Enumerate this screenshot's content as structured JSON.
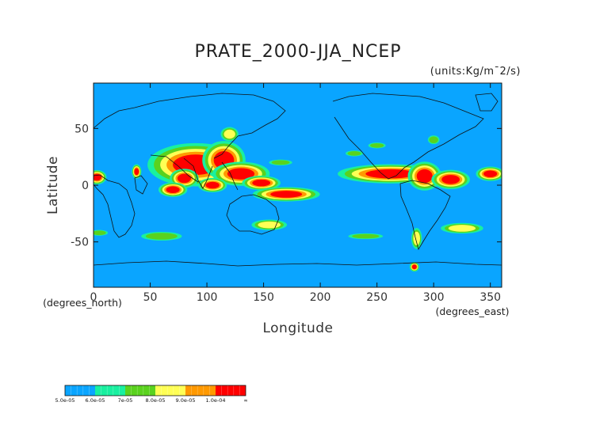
{
  "chart_data": {
    "type": "heatmap",
    "title": "PRATE_2000-JJA_NCEP",
    "units": "(units:Kg/m¯2/s)",
    "xlabel": "Longitude",
    "ylabel": "Latitude",
    "x_unit": "(degrees_east)",
    "y_unit": "(degrees_north)",
    "xlim": [
      0,
      360
    ],
    "ylim": [
      -90,
      90
    ],
    "x_ticks": [
      0,
      50,
      100,
      150,
      200,
      250,
      300,
      350
    ],
    "y_ticks": [
      -50,
      0,
      50
    ],
    "background_color": "#0aa5ff",
    "colorbar": {
      "labels": [
        "5.0e-05",
        "6.0e-05",
        "7e-05",
        "8.0e-05",
        "9.0e-05",
        "1.0e-04",
        "∞"
      ],
      "bins": [
        {
          "from": 5e-05,
          "to": 6e-05,
          "color": "#0aa5ff"
        },
        {
          "from": 6e-05,
          "to": 7e-05,
          "color": "#19f0a0"
        },
        {
          "from": 7e-05,
          "to": 8e-05,
          "color": "#5ad21e"
        },
        {
          "from": 8e-05,
          "to": 9e-05,
          "color": "#ffff55"
        },
        {
          "from": 9e-05,
          "to": 0.0001,
          "color": "#ff9900"
        },
        {
          "from": 0.0001,
          "to": null,
          "color": "#ff0000"
        }
      ]
    },
    "features": [
      {
        "lon": 90,
        "lat": 18,
        "rlon": 20,
        "rlat": 9,
        "level": 6
      },
      {
        "lon": 115,
        "lat": 22,
        "rlon": 9,
        "rlat": 8,
        "level": 6
      },
      {
        "lon": 80,
        "lat": 6,
        "rlon": 6,
        "rlat": 4,
        "level": 6
      },
      {
        "lon": 130,
        "lat": 10,
        "rlon": 12,
        "rlat": 5,
        "level": 6
      },
      {
        "lon": 148,
        "lat": 2,
        "rlon": 8,
        "rlat": 3,
        "level": 6
      },
      {
        "lon": 170,
        "lat": -8,
        "rlon": 14,
        "rlat": 3,
        "level": 6
      },
      {
        "lon": 70,
        "lat": -4,
        "rlon": 6,
        "rlat": 3,
        "level": 6
      },
      {
        "lon": 105,
        "lat": 0,
        "rlon": 6,
        "rlat": 3,
        "level": 6
      },
      {
        "lon": 262,
        "lat": 10,
        "rlon": 22,
        "rlat": 4,
        "level": 6
      },
      {
        "lon": 292,
        "lat": 8,
        "rlon": 7,
        "rlat": 6,
        "level": 6
      },
      {
        "lon": 315,
        "lat": 5,
        "rlon": 8,
        "rlat": 4,
        "level": 6
      },
      {
        "lon": 350,
        "lat": 10,
        "rlon": 6,
        "rlat": 3,
        "level": 6
      },
      {
        "lon": 3,
        "lat": 7,
        "rlon": 4,
        "rlat": 3,
        "level": 6
      },
      {
        "lon": 38,
        "lat": 12,
        "rlon": 2,
        "rlat": 3,
        "level": 6
      },
      {
        "lon": 283,
        "lat": -72,
        "rlon": 2,
        "rlat": 2,
        "level": 6
      },
      {
        "lon": 120,
        "lat": 45,
        "rlon": 5,
        "rlat": 4,
        "level": 4
      },
      {
        "lon": 230,
        "lat": 28,
        "rlon": 6,
        "rlat": 2,
        "level": 3
      },
      {
        "lon": 165,
        "lat": 20,
        "rlon": 8,
        "rlat": 2,
        "level": 3
      },
      {
        "lon": 155,
        "lat": -35,
        "rlon": 10,
        "rlat": 3,
        "level": 4
      },
      {
        "lon": 240,
        "lat": -45,
        "rlon": 12,
        "rlat": 2,
        "level": 3
      },
      {
        "lon": 285,
        "lat": -47,
        "rlon": 3,
        "rlat": 6,
        "level": 4
      },
      {
        "lon": 325,
        "lat": -38,
        "rlon": 12,
        "rlat": 3,
        "level": 4
      },
      {
        "lon": 60,
        "lat": -45,
        "rlon": 14,
        "rlat": 3,
        "level": 3
      },
      {
        "lon": 5,
        "lat": -42,
        "rlon": 6,
        "rlat": 2,
        "level": 3
      },
      {
        "lon": 300,
        "lat": 40,
        "rlon": 4,
        "rlat": 3,
        "level": 3
      },
      {
        "lon": 250,
        "lat": 35,
        "rlon": 6,
        "rlat": 2,
        "level": 3
      }
    ]
  }
}
